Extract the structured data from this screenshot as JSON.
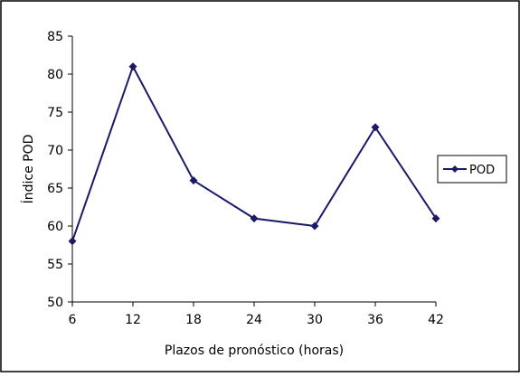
{
  "chart_data": {
    "type": "line",
    "title": "",
    "xlabel": "Plazos de pronóstico (horas)",
    "ylabel": "Índice POD",
    "x": [
      6,
      12,
      18,
      24,
      30,
      36,
      42
    ],
    "x_tick_labels": [
      "6",
      "12",
      "18",
      "24",
      "30",
      "36",
      "42"
    ],
    "ylim": [
      50,
      85
    ],
    "y_ticks": [
      50,
      55,
      60,
      65,
      70,
      75,
      80,
      85
    ],
    "y_tick_labels": [
      "50",
      "55",
      "60",
      "65",
      "70",
      "75",
      "80",
      "85"
    ],
    "grid": false,
    "legend_position": "right",
    "series": [
      {
        "name": "POD",
        "color": "#1a1a66",
        "marker": "diamond",
        "values": [
          58,
          81,
          66,
          61,
          60,
          73,
          61
        ]
      }
    ]
  }
}
